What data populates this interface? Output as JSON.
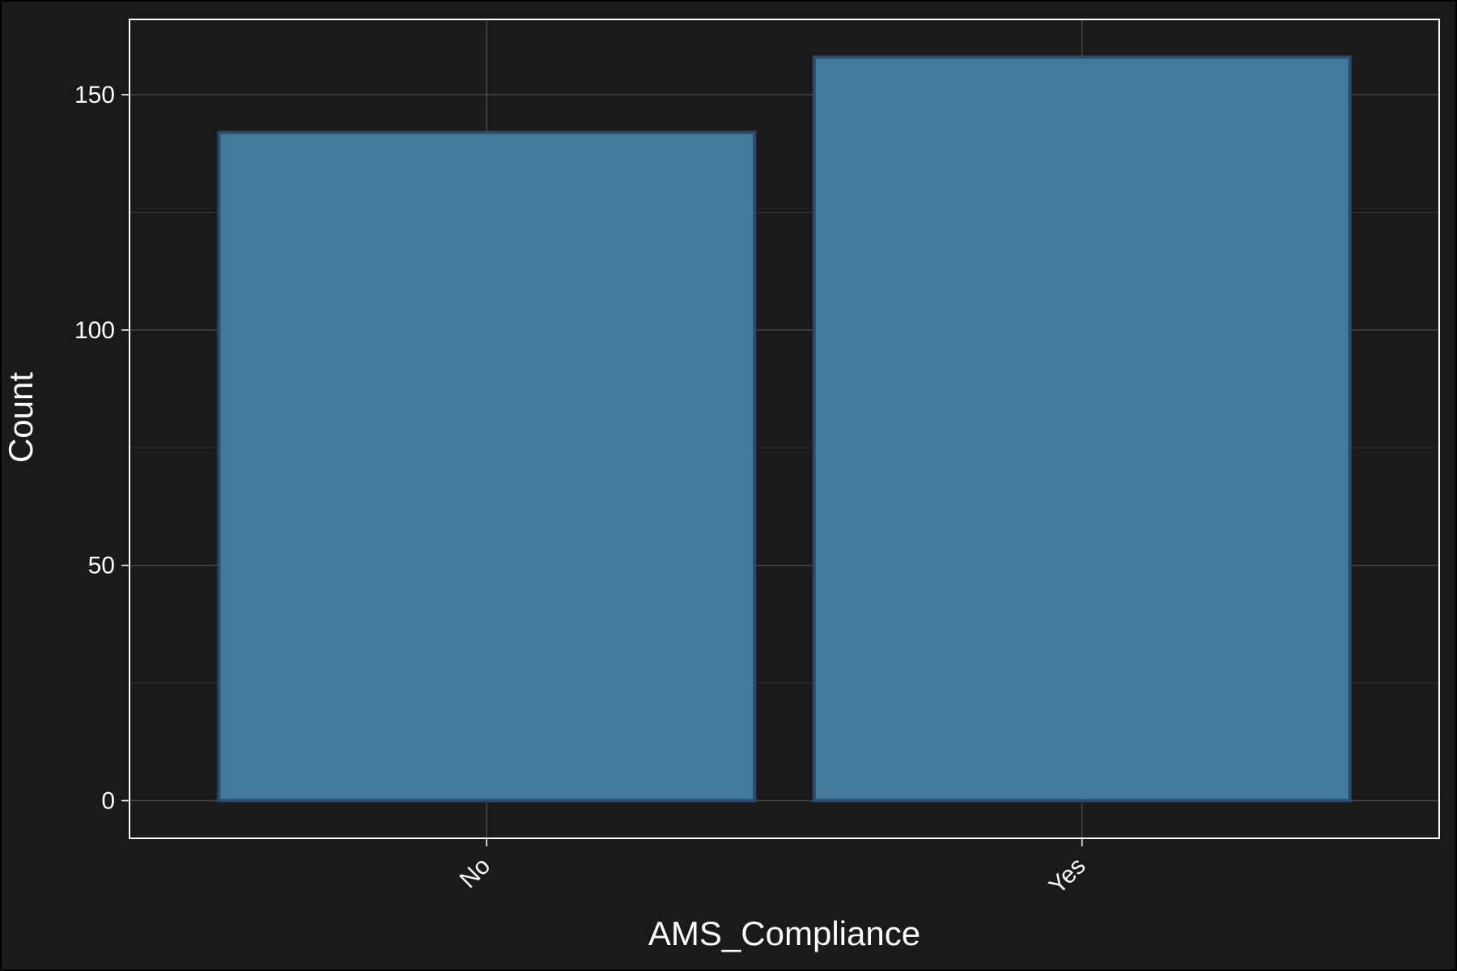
{
  "colors": {
    "background": "#1a1a1a",
    "bar_fill": "#427a9b",
    "bar_outline": "#2e4a6b",
    "text": "#ffffff"
  },
  "chart_data": {
    "type": "bar",
    "title": "",
    "xlabel": "AMS_Compliance",
    "ylabel": "Count",
    "categories": [
      "No",
      "Yes"
    ],
    "values": [
      142,
      158
    ],
    "ylim": [
      -8,
      166
    ],
    "yticks": [
      0,
      50,
      100,
      150
    ],
    "grid": true,
    "legend": "none",
    "x_tick_rotation": -45
  }
}
